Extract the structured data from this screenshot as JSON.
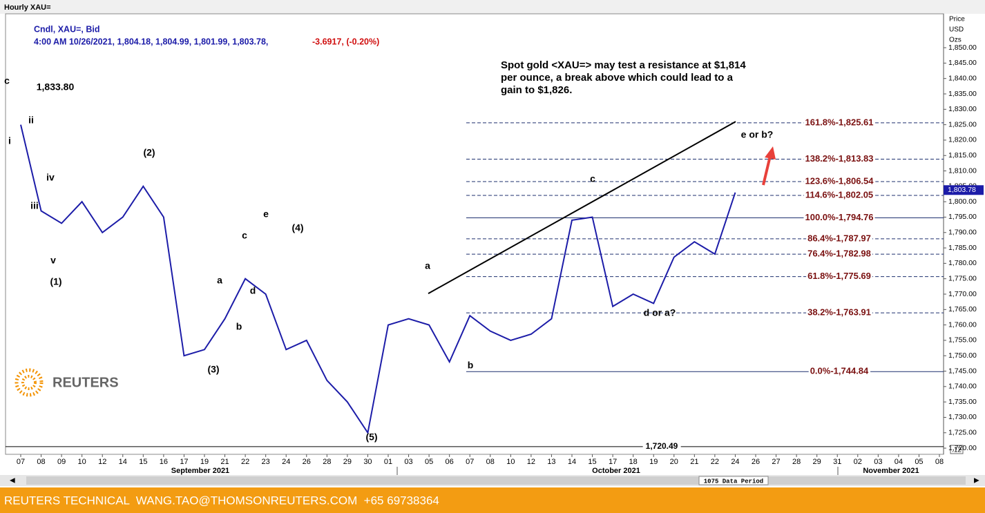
{
  "chart_data": {
    "type": "line",
    "window_title": "Hourly XAU=",
    "header": "Cndl, XAU=, Bid",
    "quote": "4:00 AM 10/26/2021, 1,804.18, 1,804.99, 1,801.99, 1,803.78,",
    "change": "-3.6917, (-0.20%)",
    "axis_title": [
      "Price",
      "USD",
      "Ozs"
    ],
    "note": [
      "Spot gold <XAU=> may test a resistance at $1,814",
      "per ounce, a break above which could lead to a",
      "gain to $1,826."
    ],
    "categories": [
      "07",
      "08",
      "09",
      "10",
      "12",
      "14",
      "15",
      "16",
      "17",
      "19",
      "21",
      "22",
      "23",
      "24",
      "26",
      "28",
      "29",
      "30",
      "01",
      "03",
      "05",
      "06",
      "07",
      "08",
      "10",
      "12",
      "13",
      "14",
      "15",
      "17",
      "18",
      "19",
      "20",
      "21",
      "22",
      "24",
      "26",
      "27",
      "28",
      "29",
      "31",
      "02",
      "03",
      "04",
      "05",
      "08"
    ],
    "months": [
      "September 2021",
      "October 2021",
      "November 2021"
    ],
    "series": [
      {
        "name": "XAU=",
        "color": "#1c1ca8",
        "values": [
          1825,
          1797,
          1793,
          1800,
          1790,
          1795,
          1805,
          1795,
          1750,
          1752,
          1762,
          1775,
          1770,
          1752,
          1755,
          1742,
          1735,
          1725,
          1760,
          1762,
          1760,
          1748,
          1763,
          1758,
          1755,
          1757,
          1762,
          1794,
          1795,
          1766,
          1770,
          1767,
          1782,
          1787,
          1783,
          1803,
          null,
          null,
          null,
          null,
          null,
          null,
          null,
          null,
          null,
          null
        ]
      }
    ],
    "ylim": [
      1718,
      1861
    ],
    "yticks": [
      {
        "value": 1720,
        "label": "1,720.00"
      },
      {
        "value": 1725,
        "label": "1,725.00"
      },
      {
        "value": 1730,
        "label": "1,730.00"
      },
      {
        "value": 1735,
        "label": "1,735.00"
      },
      {
        "value": 1740,
        "label": "1,740.00"
      },
      {
        "value": 1745,
        "label": "1,745.00"
      },
      {
        "value": 1750,
        "label": "1,750.00"
      },
      {
        "value": 1755,
        "label": "1,755.00"
      },
      {
        "value": 1760,
        "label": "1,760.00"
      },
      {
        "value": 1765,
        "label": "1,765.00"
      },
      {
        "value": 1770,
        "label": "1,770.00"
      },
      {
        "value": 1775,
        "label": "1,775.00"
      },
      {
        "value": 1780,
        "label": "1,780.00"
      },
      {
        "value": 1785,
        "label": "1,785.00"
      },
      {
        "value": 1790,
        "label": "1,790.00"
      },
      {
        "value": 1795,
        "label": "1,795.00"
      },
      {
        "value": 1800,
        "label": "1,800.00"
      },
      {
        "value": 1805,
        "label": "1,805.00"
      },
      {
        "value": 1810,
        "label": "1,810.00"
      },
      {
        "value": 1815,
        "label": "1,815.00"
      },
      {
        "value": 1820,
        "label": "1,820.00"
      },
      {
        "value": 1825,
        "label": "1,825.00"
      },
      {
        "value": 1830,
        "label": "1,830.00"
      },
      {
        "value": 1835,
        "label": "1,835.00"
      },
      {
        "value": 1840,
        "label": "1,840.00"
      },
      {
        "value": 1845,
        "label": "1,845.00"
      },
      {
        "value": 1850,
        "label": "1,850.00"
      }
    ],
    "levels": [
      {
        "value": 1825.61,
        "label": "161.8%-1,825.61"
      },
      {
        "value": 1813.83,
        "label": "138.2%-1,813.83"
      },
      {
        "value": 1806.54,
        "label": "123.6%-1,806.54"
      },
      {
        "value": 1802.05,
        "label": "114.6%-1,802.05"
      },
      {
        "value": 1794.76,
        "label": "100.0%-1,794.76"
      },
      {
        "value": 1787.97,
        "label": "86.4%-1,787.97"
      },
      {
        "value": 1782.98,
        "label": "76.4%-1,782.98"
      },
      {
        "value": 1775.69,
        "label": "61.8%-1,775.69"
      },
      {
        "value": 1763.91,
        "label": "38.2%-1,763.91"
      },
      {
        "value": 1744.84,
        "label": "0.0%-1,744.84"
      }
    ],
    "support": {
      "value": 1720.49,
      "label": "1,720.49"
    },
    "last_price": {
      "value": 1803.78,
      "label": "1,803.78"
    },
    "trendline": [
      1770.2,
      1826
    ],
    "annotations": [
      "c",
      "1,833.80",
      "i",
      "ii",
      "iii",
      "iv",
      "v",
      "(1)",
      "(2)",
      "a",
      "b",
      "c",
      "d",
      "e",
      "(4)",
      "(3)",
      "(5)",
      "a",
      "b",
      "c",
      "d or a?",
      "e or b?"
    ],
    "zoom_label": ".12",
    "data_period": "1075 Data Period",
    "logo": "REUTERS",
    "footer": "REUTERS TECHNICAL  WANG.TAO@THOMSONREUTERS.COM  +65 69738364"
  }
}
